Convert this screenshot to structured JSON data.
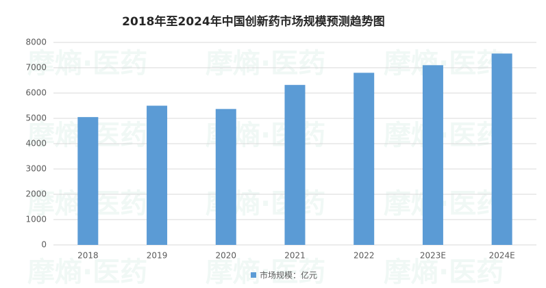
{
  "chart_data": {
    "type": "bar",
    "title": "2018年至2024年中国创新药市场规模预测趋势图",
    "categories": [
      "2018",
      "2019",
      "2020",
      "2021",
      "2022",
      "2023E",
      "2024E"
    ],
    "series": [
      {
        "name": "市场规模：亿元",
        "color": "#5b9bd5",
        "values": [
          5050,
          5500,
          5370,
          6320,
          6800,
          7100,
          7560
        ]
      }
    ],
    "ylim": [
      0,
      8000
    ],
    "yticks": [
      0,
      1000,
      2000,
      3000,
      4000,
      5000,
      6000,
      7000,
      8000
    ],
    "grid": true,
    "legend": "bottom",
    "watermark": "摩熵·医药"
  }
}
